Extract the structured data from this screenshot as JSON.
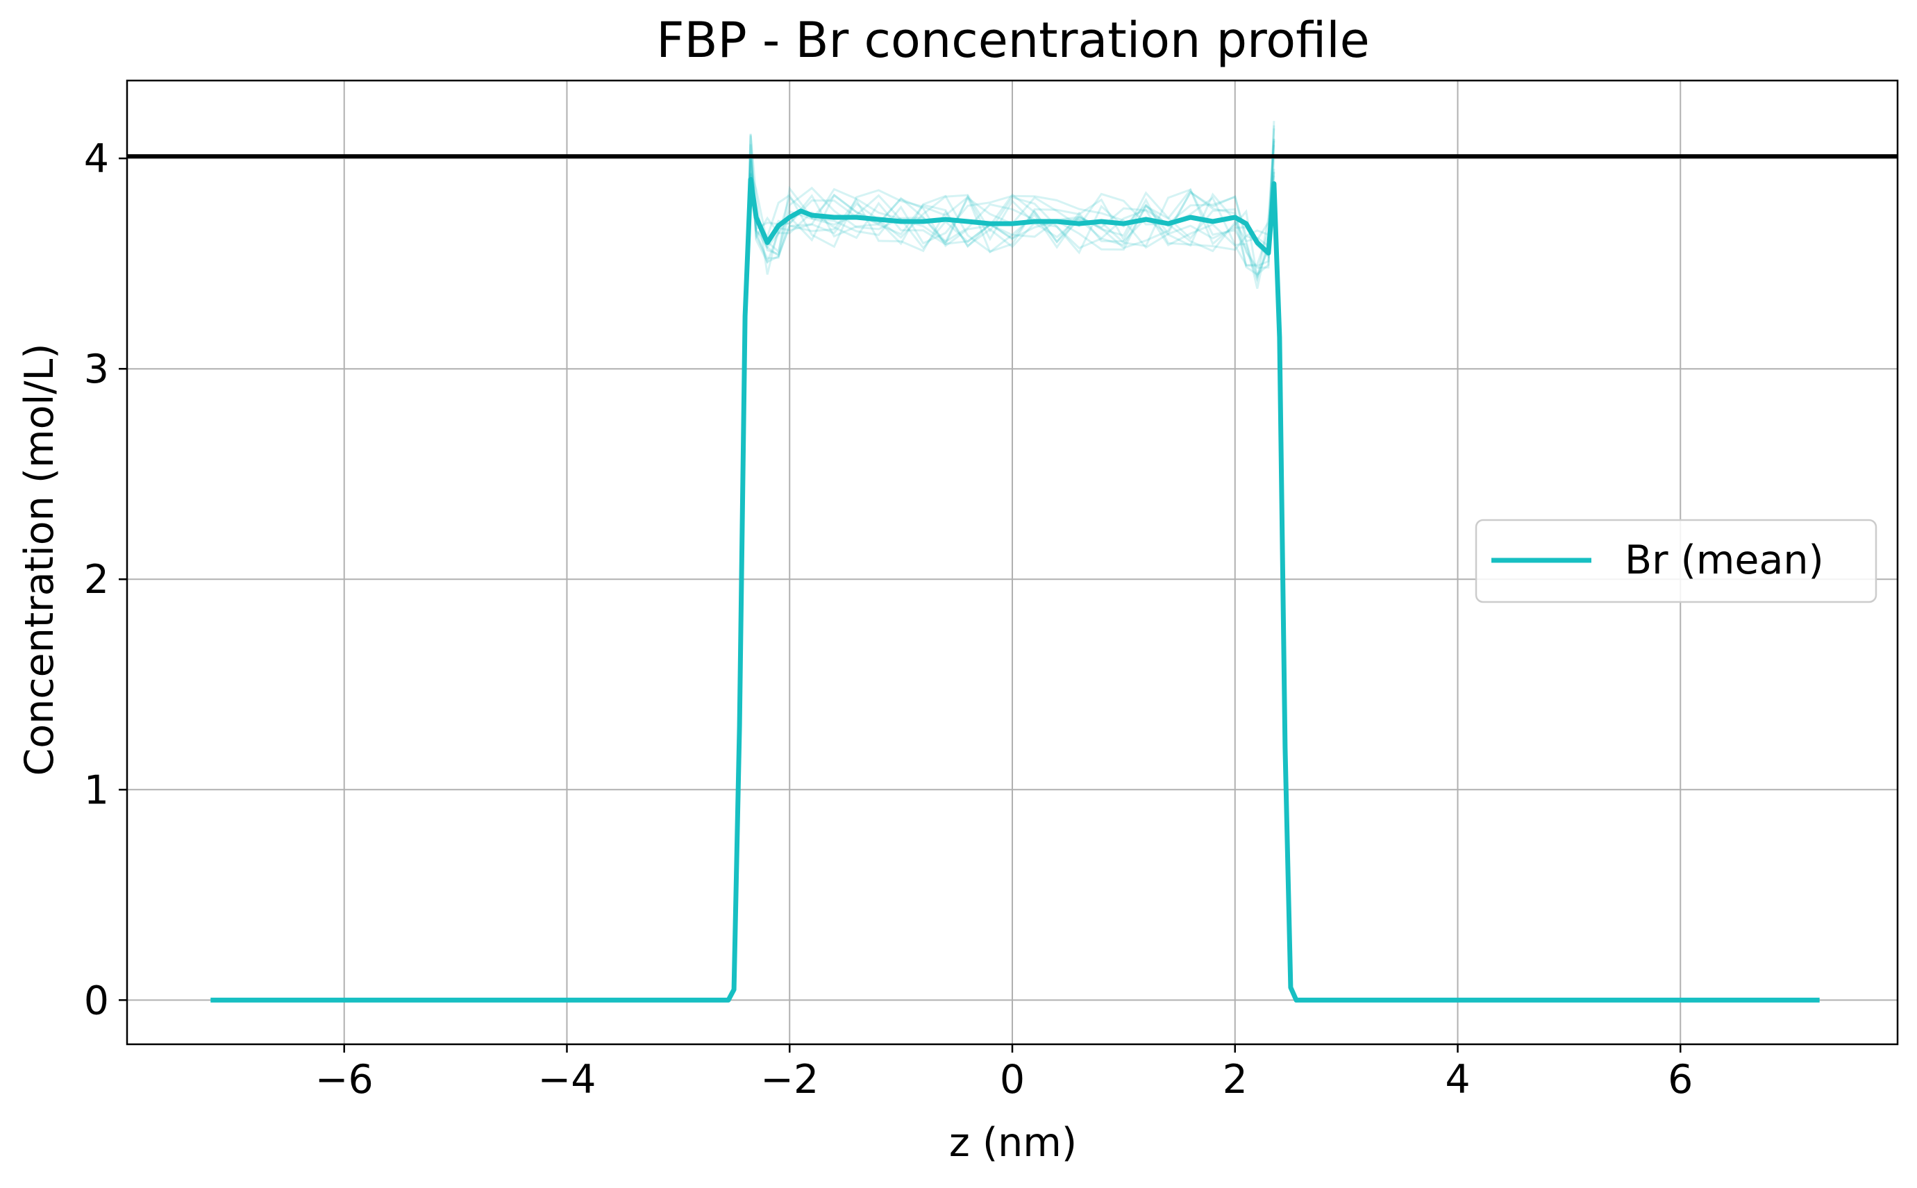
{
  "chart_data": {
    "type": "line",
    "title": "FBP - Br concentration profile",
    "xlabel": "z (nm)",
    "ylabel": "Concentration (mol/L)",
    "xlim": [
      -7.95,
      7.95
    ],
    "ylim": [
      -0.21,
      4.37
    ],
    "x_ticks": [
      -6,
      -4,
      -2,
      0,
      2,
      4,
      6
    ],
    "x_tick_labels": [
      "−6",
      "−4",
      "−2",
      "0",
      "2",
      "4",
      "6"
    ],
    "y_ticks": [
      0,
      1,
      2,
      3,
      4
    ],
    "y_tick_labels": [
      "0",
      "1",
      "2",
      "3",
      "4"
    ],
    "grid": true,
    "legend_position": "center-right",
    "reference_line": {
      "y": 4.01,
      "color": "#000000"
    },
    "series": [
      {
        "name": "Br (mean)",
        "color": "#17bfc2",
        "x": [
          -7.2,
          -2.55,
          -2.5,
          -2.45,
          -2.4,
          -2.35,
          -2.3,
          -2.2,
          -2.1,
          -2.0,
          -1.9,
          -1.8,
          -1.6,
          -1.4,
          -1.2,
          -1.0,
          -0.8,
          -0.6,
          -0.4,
          -0.2,
          0.0,
          0.2,
          0.4,
          0.6,
          0.8,
          1.0,
          1.2,
          1.4,
          1.6,
          1.8,
          1.9,
          2.0,
          2.1,
          2.2,
          2.3,
          2.35,
          2.4,
          2.45,
          2.5,
          2.55,
          7.25
        ],
        "y": [
          0,
          0,
          0.05,
          1.3,
          3.25,
          3.9,
          3.72,
          3.6,
          3.68,
          3.72,
          3.75,
          3.73,
          3.72,
          3.72,
          3.71,
          3.7,
          3.7,
          3.71,
          3.7,
          3.69,
          3.69,
          3.7,
          3.7,
          3.69,
          3.7,
          3.69,
          3.71,
          3.69,
          3.72,
          3.7,
          3.71,
          3.72,
          3.69,
          3.6,
          3.55,
          3.88,
          3.15,
          1.2,
          0.06,
          0,
          0
        ]
      }
    ],
    "faint_series": {
      "color": "#17bfc2",
      "count": 12,
      "x": [
        -2.4,
        -2.35,
        -2.3,
        -2.2,
        -2.1,
        -2.0,
        -1.8,
        -1.6,
        -1.4,
        -1.2,
        -1.0,
        -0.8,
        -0.6,
        -0.4,
        -0.2,
        0.0,
        0.2,
        0.4,
        0.6,
        0.8,
        1.0,
        1.2,
        1.4,
        1.6,
        1.8,
        2.0,
        2.1,
        2.2,
        2.3,
        2.35
      ],
      "y_center": [
        3.25,
        4.05,
        3.72,
        3.58,
        3.66,
        3.72,
        3.73,
        3.72,
        3.72,
        3.71,
        3.7,
        3.7,
        3.71,
        3.7,
        3.69,
        3.69,
        3.7,
        3.7,
        3.69,
        3.7,
        3.69,
        3.71,
        3.69,
        3.72,
        3.7,
        3.7,
        3.62,
        3.52,
        3.6,
        4.05
      ],
      "spread": 0.14
    }
  }
}
